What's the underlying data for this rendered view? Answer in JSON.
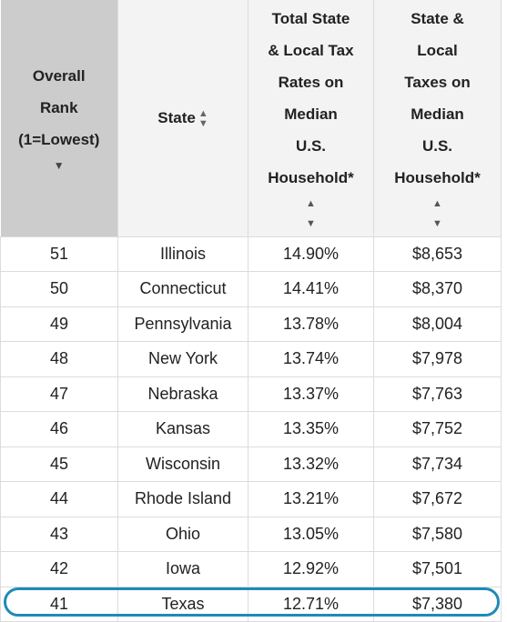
{
  "table": {
    "headers": {
      "rank": [
        "Overall",
        "Rank",
        "(1=Lowest)"
      ],
      "state": "State",
      "rate": [
        "Total State",
        "& Local Tax",
        "Rates on",
        "Median",
        "U.S.",
        "Household*"
      ],
      "taxes": [
        "State &",
        "Local",
        "Taxes on",
        "Median",
        "U.S.",
        "Household*"
      ]
    },
    "sort_icon": "sort-updown-icon",
    "sorted_icon": "sort-descending-icon",
    "rows": [
      {
        "rank": "51",
        "state": "Illinois",
        "rate": "14.90%",
        "taxes": "$8,653"
      },
      {
        "rank": "50",
        "state": "Connecticut",
        "rate": "14.41%",
        "taxes": "$8,370"
      },
      {
        "rank": "49",
        "state": "Pennsylvania",
        "rate": "13.78%",
        "taxes": "$8,004"
      },
      {
        "rank": "48",
        "state": "New York",
        "rate": "13.74%",
        "taxes": "$7,978"
      },
      {
        "rank": "47",
        "state": "Nebraska",
        "rate": "13.37%",
        "taxes": "$7,763"
      },
      {
        "rank": "46",
        "state": "Kansas",
        "rate": "13.35%",
        "taxes": "$7,752"
      },
      {
        "rank": "45",
        "state": "Wisconsin",
        "rate": "13.32%",
        "taxes": "$7,734"
      },
      {
        "rank": "44",
        "state": "Rhode Island",
        "rate": "13.21%",
        "taxes": "$7,672"
      },
      {
        "rank": "43",
        "state": "Ohio",
        "rate": "13.05%",
        "taxes": "$7,580"
      },
      {
        "rank": "42",
        "state": "Iowa",
        "rate": "12.92%",
        "taxes": "$7,501"
      },
      {
        "rank": "41",
        "state": "Texas",
        "rate": "12.71%",
        "taxes": "$7,380"
      }
    ],
    "highlight_color": "#1e8bb8",
    "sorted_header_bg": "#cccccc"
  }
}
